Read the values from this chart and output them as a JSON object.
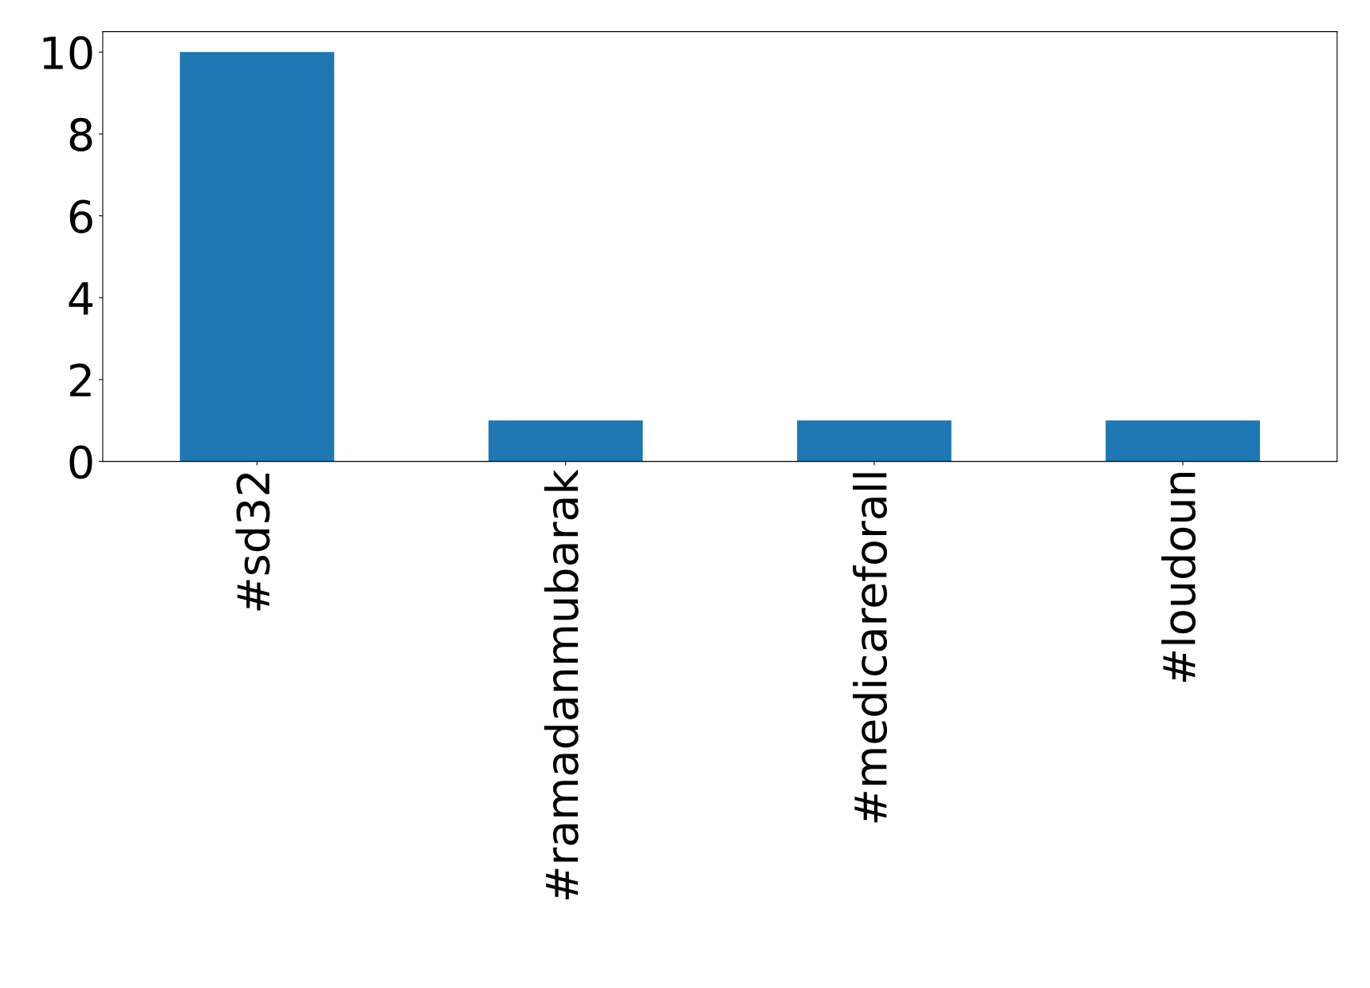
{
  "chart_data": {
    "type": "bar",
    "categories": [
      "#sd32",
      "#ramadanmubarak",
      "#medicareforall",
      "#loudoun"
    ],
    "values": [
      10,
      1,
      1,
      1
    ],
    "color": "#1f77b4",
    "ylim": [
      0,
      10.5
    ],
    "yticks": [
      0,
      2,
      4,
      6,
      8,
      10
    ],
    "grid": false,
    "legend": false
  }
}
